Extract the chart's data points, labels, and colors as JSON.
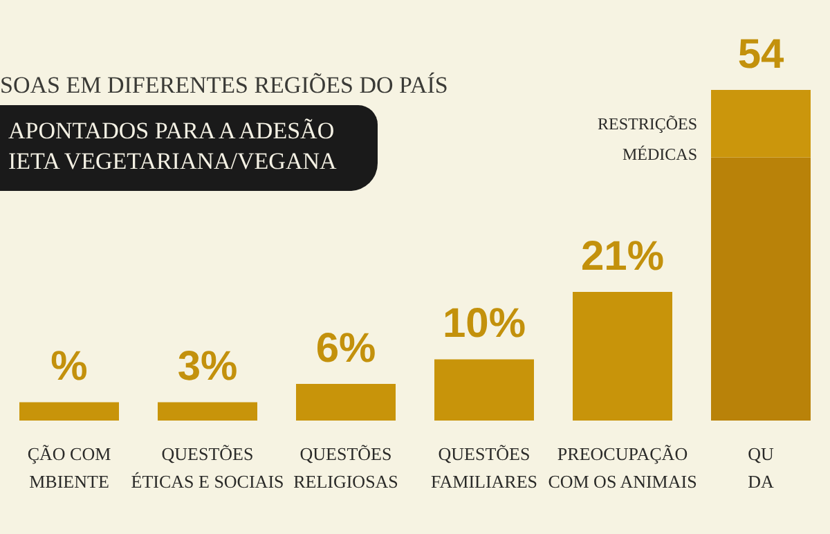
{
  "chart_data": {
    "type": "bar",
    "stacked": true,
    "subtitle": "SOAS EM DIFERENTES REGIÕES DO PAÍS",
    "title": "APONTADOS PARA A ADESÃO\nIETA VEGETARIANA/VEGANA",
    "categories": [
      "ÇÃO COM\nMBIENTE",
      "QUESTÕES\nÉTICAS E SOCIAIS",
      "QUESTÕES\nRELIGIOSAS",
      "QUESTÕES\nFAMILIARES",
      "PREOCUPAÇÃO\nCOM OS ANIMAIS",
      "QU\nDA"
    ],
    "series": [
      {
        "colors": [
          "#c8940a",
          "#c8940a",
          "#c8940a",
          "#c8940a",
          "#c8940a",
          "#b98209"
        ],
        "values": [
          3,
          3,
          6,
          10,
          21,
          43
        ],
        "value_labels": [
          "%",
          "3%",
          "6%",
          "10%",
          "21%",
          null
        ]
      },
      {
        "name": "RESTRIÇÕES\nMÉDICAS",
        "color": "#cb960c",
        "values": [
          null,
          null,
          null,
          null,
          null,
          11
        ]
      }
    ],
    "totals": [
      null,
      null,
      null,
      null,
      null,
      "54"
    ]
  }
}
